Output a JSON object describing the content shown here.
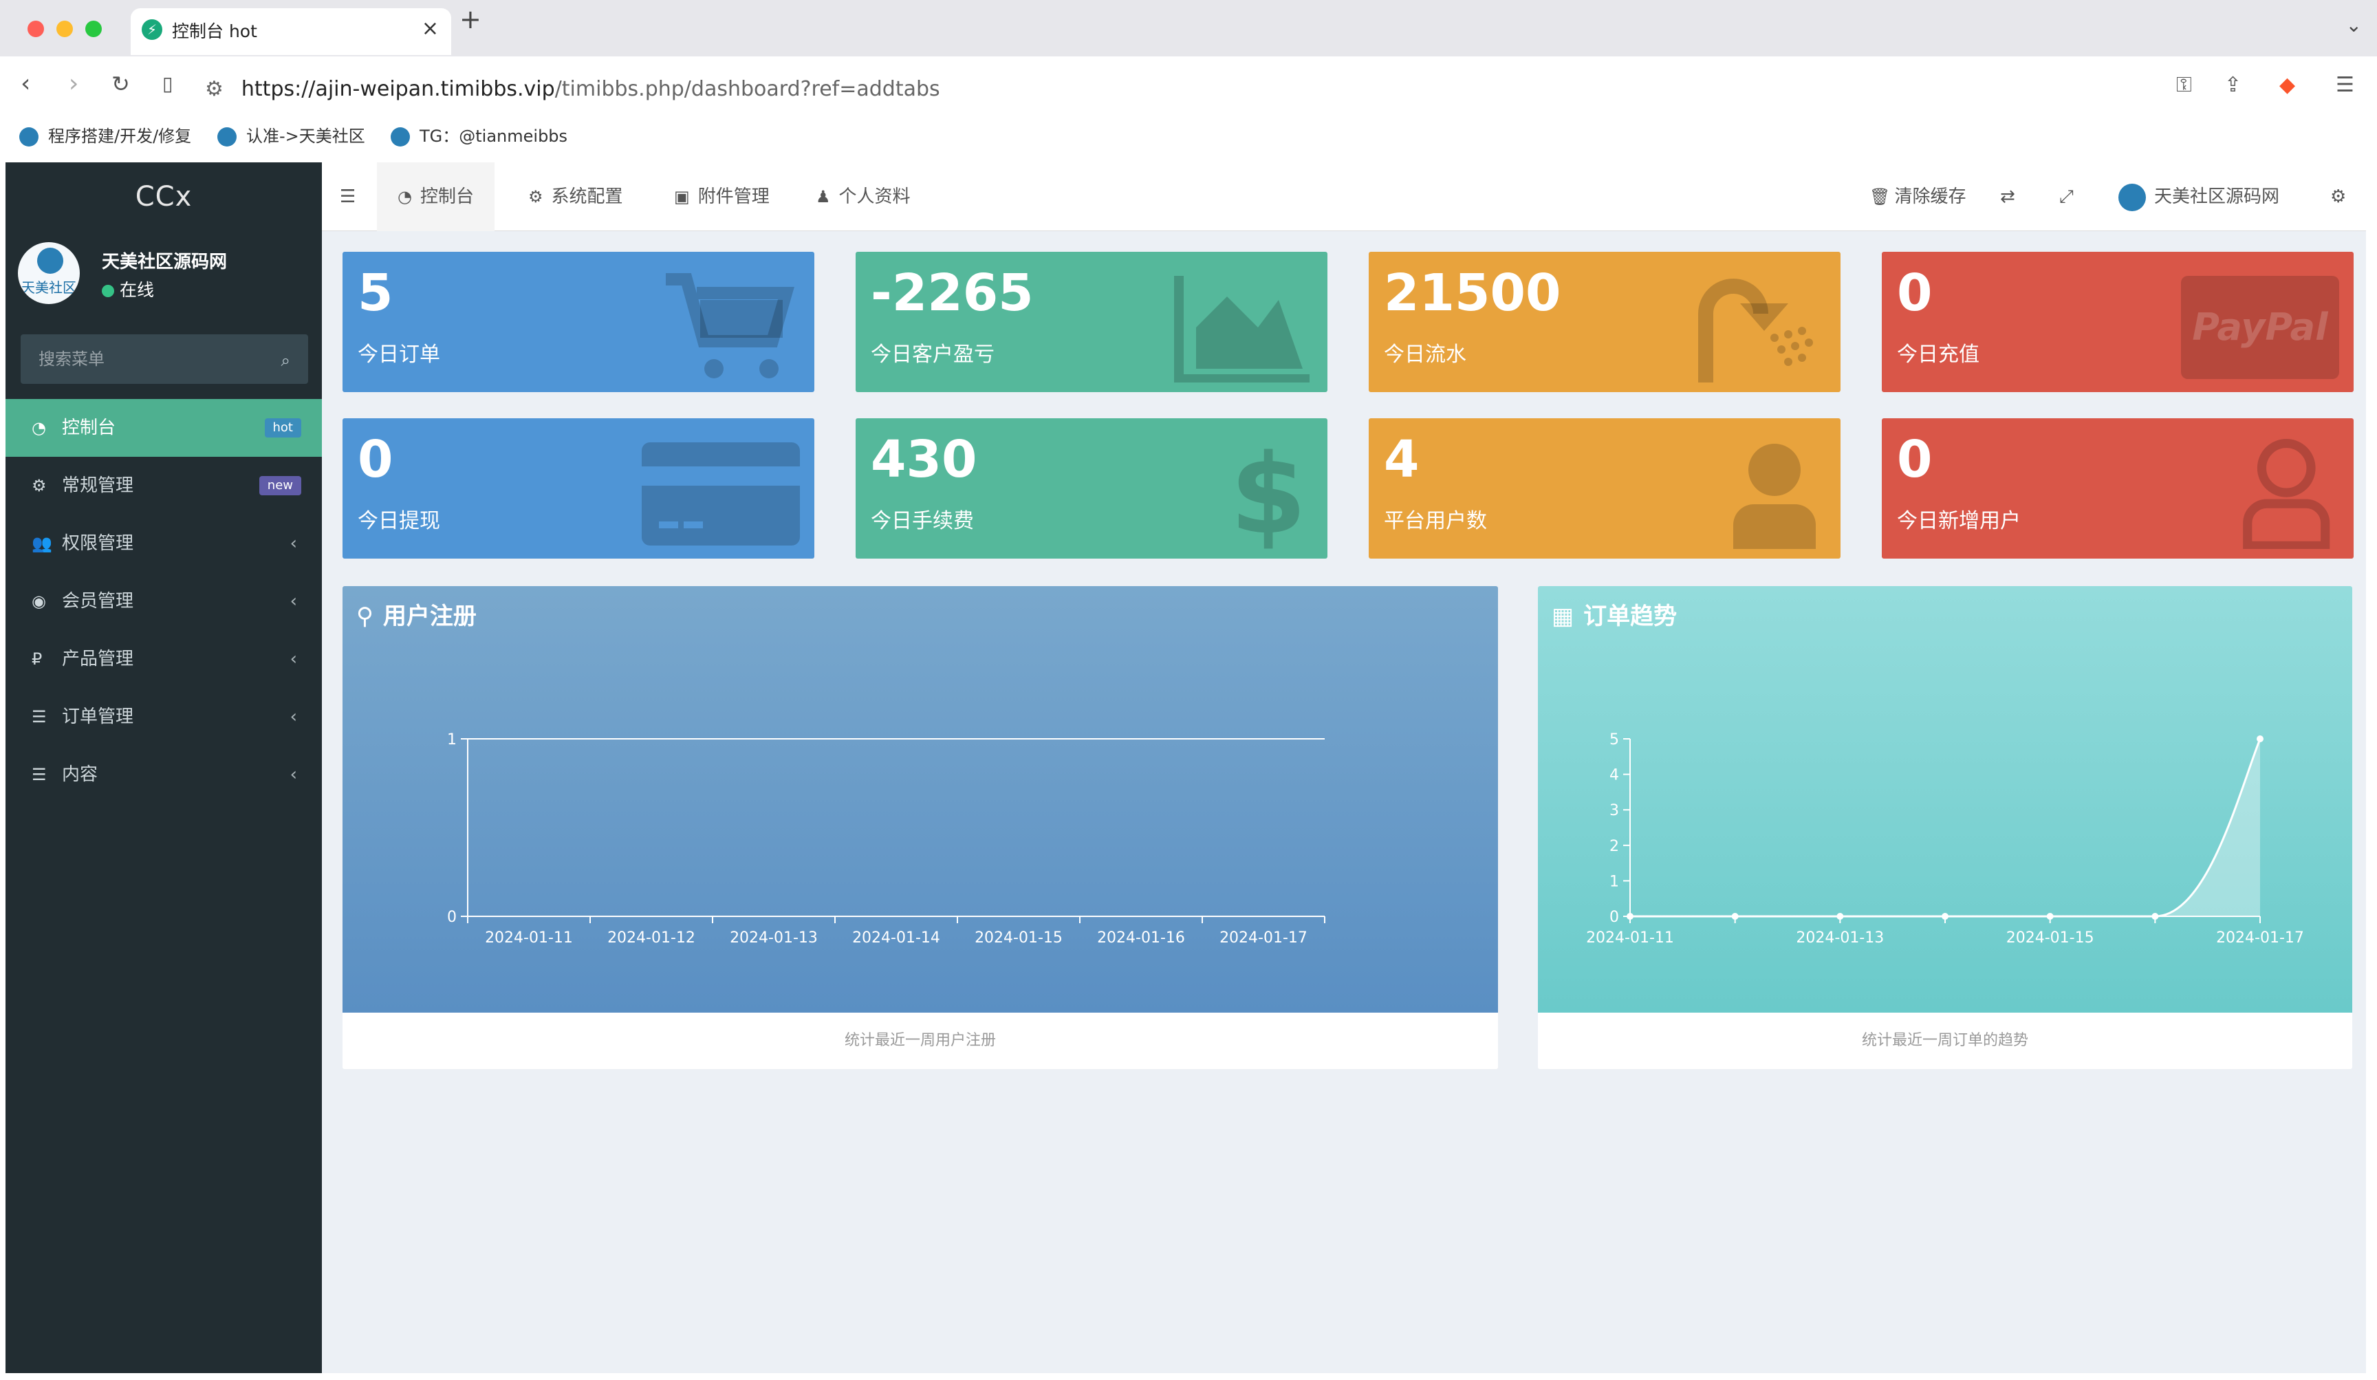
{
  "browser": {
    "tab_title": "控制台 hot",
    "url_host": "https://ajin-weipan.timibbs.vip",
    "url_path": "/timibbs.php/dashboard?ref=addtabs",
    "bookmarks": [
      "程序搭建/开发/修复",
      "认准->天美社区",
      "TG：@tianmeibbs"
    ]
  },
  "sidebar": {
    "brand": "CCx",
    "user_name": "天美社区源码网",
    "avatar_text": "天美社区",
    "status": "在线",
    "search_placeholder": "搜索菜单",
    "items": [
      {
        "label": "控制台",
        "badge": "hot",
        "active": true
      },
      {
        "label": "常规管理",
        "badge": "new"
      },
      {
        "label": "权限管理"
      },
      {
        "label": "会员管理"
      },
      {
        "label": "产品管理"
      },
      {
        "label": "订单管理"
      },
      {
        "label": "内容"
      }
    ]
  },
  "header": {
    "tabs": [
      "控制台",
      "系统配置",
      "附件管理",
      "个人资料"
    ],
    "clear_cache": "清除缓存",
    "site_name": "天美社区源码网"
  },
  "stats": [
    {
      "value": "5",
      "label": "今日订单",
      "color": "#4f95d6",
      "icon": "cart-icon"
    },
    {
      "value": "-2265",
      "label": "今日客户盈亏",
      "color": "#55b89b",
      "icon": "area-chart-icon"
    },
    {
      "value": "21500",
      "label": "今日流水",
      "color": "#e8a33d",
      "icon": "shower-icon"
    },
    {
      "value": "0",
      "label": "今日充值",
      "color": "#d95648",
      "icon": "paypal-icon"
    },
    {
      "value": "0",
      "label": "今日提现",
      "color": "#4f95d6",
      "icon": "credit-card-icon"
    },
    {
      "value": "430",
      "label": "今日手续费",
      "color": "#55b89b",
      "icon": "dollar-icon"
    },
    {
      "value": "4",
      "label": "平台用户数",
      "color": "#e8a33d",
      "icon": "user-icon"
    },
    {
      "value": "0",
      "label": "今日新增用户",
      "color": "#d95648",
      "icon": "user-outline-icon"
    }
  ],
  "panels": {
    "register_title": "用户注册",
    "register_footer": "统计最近一周用户注册",
    "orders_title": "订单趋势",
    "orders_footer": "统计最近一周订单的趋势"
  },
  "chart_data": [
    {
      "type": "line",
      "title": "用户注册",
      "x": [
        "2024-01-11",
        "2024-01-12",
        "2024-01-13",
        "2024-01-14",
        "2024-01-15",
        "2024-01-16",
        "2024-01-17"
      ],
      "xtick_labels": [
        "2024-01-11",
        "2024-01-12",
        "2024-01-13",
        "2024-01-14",
        "2024-01-15",
        "2024-01-16",
        "2024-01-17"
      ],
      "values": [
        0,
        0,
        0,
        0,
        0,
        0,
        0
      ],
      "yticks": [
        0,
        1
      ],
      "ylim": [
        0,
        1
      ],
      "grid": false
    },
    {
      "type": "area",
      "title": "订单趋势",
      "x": [
        "2024-01-11",
        "2024-01-12",
        "2024-01-13",
        "2024-01-14",
        "2024-01-15",
        "2024-01-16",
        "2024-01-17"
      ],
      "xtick_labels": [
        "2024-01-11",
        "2024-01-13",
        "2024-01-15",
        "2024-01-17"
      ],
      "values": [
        0,
        0,
        0,
        0,
        0,
        0,
        5
      ],
      "yticks": [
        0,
        1,
        2,
        3,
        4,
        5
      ],
      "ylim": [
        0,
        5
      ],
      "grid": false
    }
  ]
}
